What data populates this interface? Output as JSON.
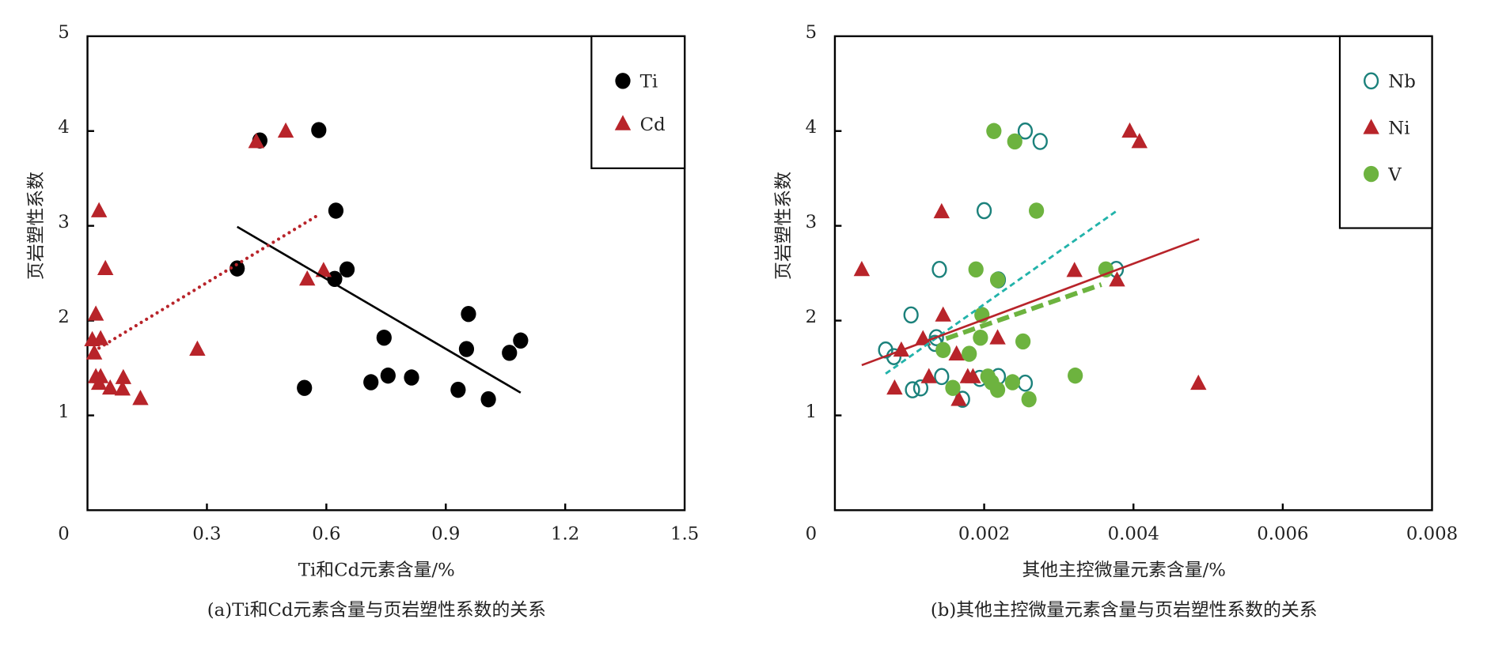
{
  "chart_data": [
    {
      "type": "scatter",
      "caption": "(a)Ti和Cd元素含量与页岩塑性系数的关系",
      "xlabel": "Ti和Cd元素含量/%",
      "ylabel": "页岩塑性系数",
      "xlim": [
        0,
        1.5
      ],
      "ylim": [
        0,
        5
      ],
      "xticks": [
        "0",
        "0.3",
        "0.6",
        "0.9",
        "1.2",
        "1.5"
      ],
      "xtick_values": [
        0,
        0.3,
        0.6,
        0.9,
        1.2,
        1.5
      ],
      "yticks": [
        "1",
        "2",
        "3",
        "4",
        "5"
      ],
      "ytick_values": [
        1,
        2,
        3,
        4,
        5
      ],
      "legend_position": "top-right",
      "series": [
        {
          "name": "Ti",
          "marker": "filled-circle",
          "color": "#000000",
          "points": [
            [
              0.433,
              3.9
            ],
            [
              0.581,
              4.01
            ],
            [
              0.376,
              2.55
            ],
            [
              0.624,
              3.16
            ],
            [
              0.621,
              2.44
            ],
            [
              0.652,
              2.54
            ],
            [
              0.957,
              2.07
            ],
            [
              0.745,
              1.82
            ],
            [
              0.952,
              1.7
            ],
            [
              1.088,
              1.79
            ],
            [
              1.06,
              1.66
            ],
            [
              0.545,
              1.29
            ],
            [
              0.712,
              1.35
            ],
            [
              0.755,
              1.42
            ],
            [
              0.814,
              1.4
            ],
            [
              0.931,
              1.27
            ],
            [
              1.007,
              1.17
            ]
          ],
          "trend": {
            "style": "solid",
            "from": [
              0.376,
              2.99
            ],
            "to": [
              1.088,
              1.24
            ]
          }
        },
        {
          "name": "Cd",
          "marker": "triangle",
          "color": "#b8242a",
          "points": [
            [
              0.424,
              3.89
            ],
            [
              0.498,
              4.0
            ],
            [
              0.029,
              3.16
            ],
            [
              0.045,
              2.55
            ],
            [
              0.593,
              2.53
            ],
            [
              0.552,
              2.44
            ],
            [
              0.021,
              2.07
            ],
            [
              0.012,
              1.8
            ],
            [
              0.033,
              1.81
            ],
            [
              0.017,
              1.66
            ],
            [
              0.276,
              1.7
            ],
            [
              0.021,
              1.41
            ],
            [
              0.033,
              1.41
            ],
            [
              0.029,
              1.34
            ],
            [
              0.057,
              1.29
            ],
            [
              0.09,
              1.4
            ],
            [
              0.088,
              1.28
            ],
            [
              0.133,
              1.18
            ]
          ],
          "trend": {
            "style": "dotted",
            "from": [
              0.029,
              1.71
            ],
            "to": [
              0.586,
              3.13
            ]
          }
        }
      ]
    },
    {
      "type": "scatter",
      "caption": "(b)其他主控微量元素含量与页岩塑性系数的关系",
      "xlabel": "其他主控微量元素含量/%",
      "ylabel": "页岩塑性系数",
      "xlim": [
        0,
        0.008
      ],
      "ylim": [
        0,
        5
      ],
      "xticks": [
        "0",
        "0.002",
        "0.004",
        "0.006",
        "0.008"
      ],
      "xtick_values": [
        0,
        0.002,
        0.004,
        0.006,
        0.008
      ],
      "yticks": [
        "1",
        "2",
        "3",
        "4",
        "5"
      ],
      "ytick_values": [
        1,
        2,
        3,
        4,
        5
      ],
      "legend_position": "top-right",
      "series": [
        {
          "name": "Nb",
          "marker": "open-circle",
          "color": "#1b817b",
          "points": [
            [
              0.00068,
              1.69
            ],
            [
              0.00079,
              1.62
            ],
            [
              0.00102,
              2.06
            ],
            [
              0.0014,
              2.54
            ],
            [
              0.002,
              3.16
            ],
            [
              0.00255,
              4.0
            ],
            [
              0.00275,
              3.89
            ],
            [
              0.00219,
              2.43
            ],
            [
              0.00377,
              2.54
            ],
            [
              0.00136,
              1.82
            ],
            [
              0.00134,
              1.76
            ],
            [
              0.00104,
              1.27
            ],
            [
              0.00115,
              1.29
            ],
            [
              0.00143,
              1.41
            ],
            [
              0.00194,
              1.39
            ],
            [
              0.00219,
              1.41
            ],
            [
              0.00255,
              1.34
            ],
            [
              0.00171,
              1.17
            ]
          ],
          "trend": {
            "style": "dashed",
            "color": "#22b3aa",
            "from": [
              0.00068,
              1.44
            ],
            "to": [
              0.00378,
              3.16
            ]
          }
        },
        {
          "name": "Ni",
          "marker": "triangle",
          "color": "#b8242a",
          "points": [
            [
              0.00036,
              2.54
            ],
            [
              0.00143,
              3.15
            ],
            [
              0.00395,
              4.0
            ],
            [
              0.00408,
              3.89
            ],
            [
              0.00321,
              2.53
            ],
            [
              0.00378,
              2.43
            ],
            [
              0.00145,
              2.06
            ],
            [
              0.00218,
              1.82
            ],
            [
              0.00118,
              1.81
            ],
            [
              0.00089,
              1.69
            ],
            [
              0.00163,
              1.65
            ],
            [
              0.00126,
              1.41
            ],
            [
              0.0008,
              1.29
            ],
            [
              0.00178,
              1.41
            ],
            [
              0.00185,
              1.41
            ],
            [
              0.00166,
              1.17
            ],
            [
              0.00487,
              1.34
            ]
          ],
          "trend": {
            "style": "solid",
            "color": "#b8242a",
            "from": [
              0.00036,
              1.53
            ],
            "to": [
              0.00488,
              2.86
            ]
          }
        },
        {
          "name": "V",
          "marker": "filled-circle",
          "color": "#6db33f",
          "points": [
            [
              0.00213,
              4.0
            ],
            [
              0.00241,
              3.89
            ],
            [
              0.0027,
              3.16
            ],
            [
              0.00189,
              2.54
            ],
            [
              0.00218,
              2.43
            ],
            [
              0.00363,
              2.54
            ],
            [
              0.00197,
              2.06
            ],
            [
              0.00195,
              1.82
            ],
            [
              0.00252,
              1.78
            ],
            [
              0.00145,
              1.69
            ],
            [
              0.0018,
              1.65
            ],
            [
              0.00158,
              1.29
            ],
            [
              0.00205,
              1.41
            ],
            [
              0.0021,
              1.35
            ],
            [
              0.00218,
              1.27
            ],
            [
              0.00238,
              1.35
            ],
            [
              0.0026,
              1.17
            ],
            [
              0.00322,
              1.42
            ]
          ],
          "trend": {
            "style": "thick-dashed",
            "color": "#6db33f",
            "from": [
              0.00149,
              1.81
            ],
            "to": [
              0.00357,
              2.38
            ]
          }
        }
      ]
    }
  ]
}
